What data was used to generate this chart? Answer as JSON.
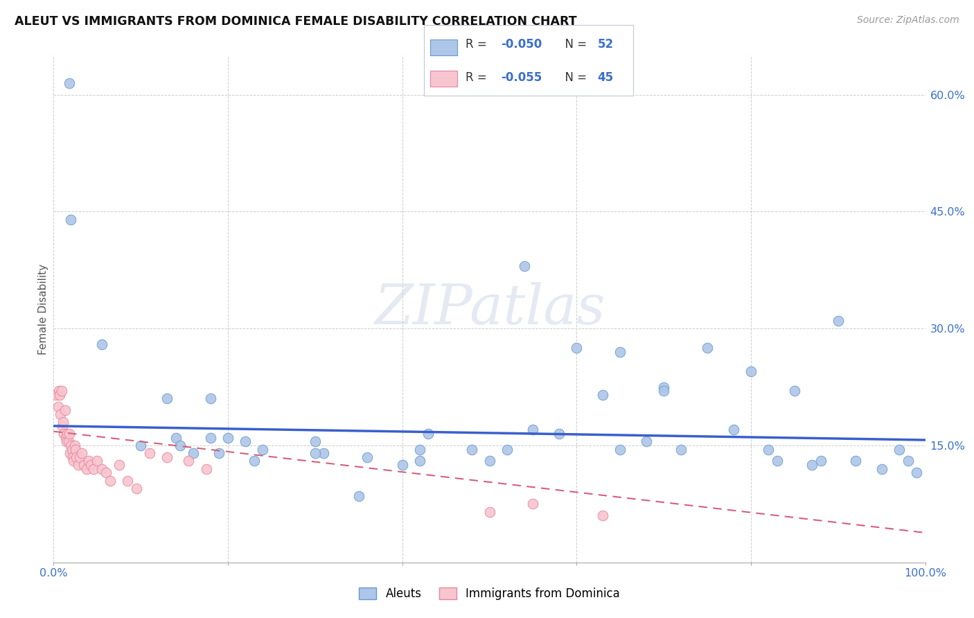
{
  "title": "ALEUT VS IMMIGRANTS FROM DOMINICA FEMALE DISABILITY CORRELATION CHART",
  "source": "Source: ZipAtlas.com",
  "ylabel": "Female Disability",
  "y_ticks": [
    0.0,
    0.15,
    0.3,
    0.45,
    0.6
  ],
  "y_tick_labels": [
    "",
    "15.0%",
    "30.0%",
    "45.0%",
    "60.0%"
  ],
  "xlim": [
    0.0,
    1.0
  ],
  "ylim": [
    0.0,
    0.65
  ],
  "aleuts_color": "#aec6e8",
  "aleuts_edge": "#6699cc",
  "dominica_color": "#f7c5d0",
  "dominica_edge": "#e8849a",
  "trend_line_aleuts_color": "#3a5fcd",
  "trend_line_dominica_color": "#d4607a",
  "watermark": "ZIPatlas",
  "legend_box_color": "#e8eef8",
  "legend_box_edge": "#b0b8d0",
  "aleuts_x": [
    0.018,
    0.02,
    0.055,
    0.13,
    0.14,
    0.145,
    0.16,
    0.18,
    0.19,
    0.2,
    0.22,
    0.23,
    0.24,
    0.3,
    0.31,
    0.35,
    0.36,
    0.4,
    0.42,
    0.43,
    0.48,
    0.5,
    0.52,
    0.54,
    0.58,
    0.6,
    0.63,
    0.65,
    0.68,
    0.7,
    0.72,
    0.75,
    0.78,
    0.8,
    0.82,
    0.83,
    0.85,
    0.87,
    0.88,
    0.9,
    0.92,
    0.95,
    0.97,
    0.98,
    0.99,
    0.65,
    0.7,
    0.55,
    0.42,
    0.3,
    0.18,
    0.1
  ],
  "aleuts_y": [
    0.615,
    0.44,
    0.28,
    0.21,
    0.16,
    0.15,
    0.14,
    0.21,
    0.14,
    0.16,
    0.155,
    0.13,
    0.145,
    0.155,
    0.14,
    0.085,
    0.135,
    0.125,
    0.145,
    0.165,
    0.145,
    0.13,
    0.145,
    0.38,
    0.165,
    0.275,
    0.215,
    0.145,
    0.155,
    0.225,
    0.145,
    0.275,
    0.17,
    0.245,
    0.145,
    0.13,
    0.22,
    0.125,
    0.13,
    0.31,
    0.13,
    0.12,
    0.145,
    0.13,
    0.115,
    0.27,
    0.22,
    0.17,
    0.13,
    0.14,
    0.16,
    0.15
  ],
  "dominica_x": [
    0.003,
    0.005,
    0.006,
    0.007,
    0.008,
    0.009,
    0.01,
    0.011,
    0.012,
    0.013,
    0.014,
    0.015,
    0.016,
    0.017,
    0.018,
    0.019,
    0.02,
    0.021,
    0.022,
    0.023,
    0.024,
    0.025,
    0.026,
    0.028,
    0.03,
    0.032,
    0.035,
    0.038,
    0.04,
    0.043,
    0.046,
    0.05,
    0.055,
    0.06,
    0.065,
    0.075,
    0.085,
    0.095,
    0.11,
    0.13,
    0.155,
    0.175,
    0.5,
    0.55,
    0.63
  ],
  "dominica_y": [
    0.215,
    0.2,
    0.22,
    0.215,
    0.19,
    0.22,
    0.175,
    0.18,
    0.165,
    0.195,
    0.16,
    0.155,
    0.165,
    0.155,
    0.165,
    0.14,
    0.15,
    0.145,
    0.135,
    0.13,
    0.15,
    0.145,
    0.135,
    0.125,
    0.135,
    0.14,
    0.125,
    0.12,
    0.13,
    0.125,
    0.12,
    0.13,
    0.12,
    0.115,
    0.105,
    0.125,
    0.105,
    0.095,
    0.14,
    0.135,
    0.13,
    0.12,
    0.065,
    0.075,
    0.06
  ]
}
